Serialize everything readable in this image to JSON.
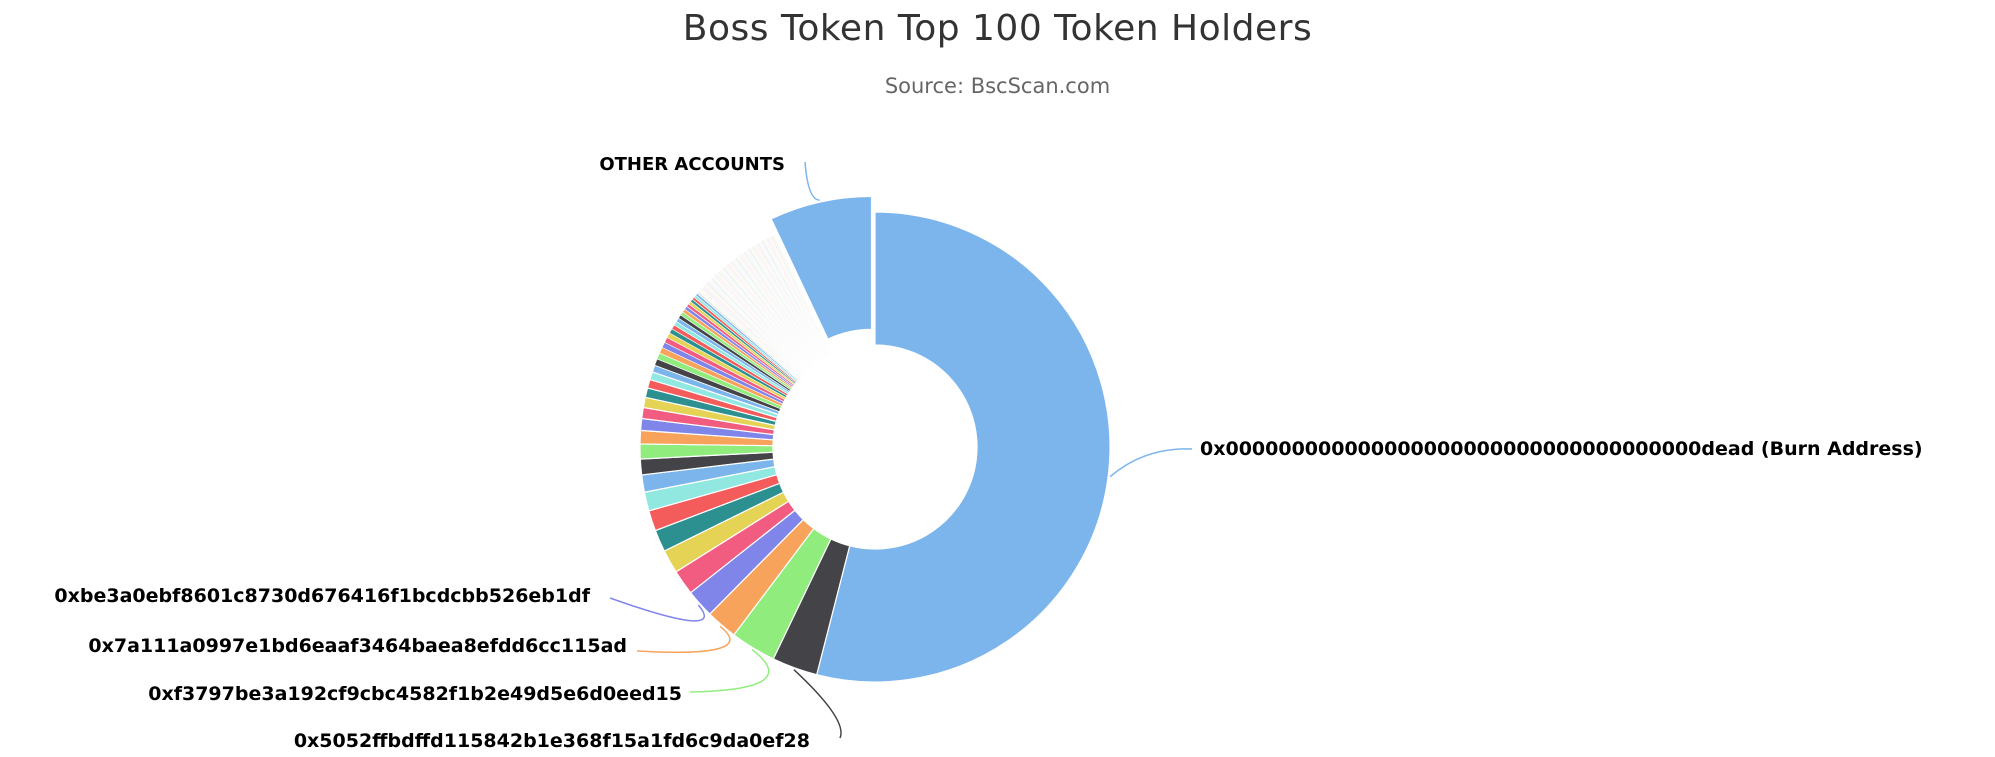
{
  "chart_data": {
    "type": "pie",
    "title": "Boss Token Top 100 Token Holders",
    "subtitle": "Source: BscScan.com",
    "variant": "donut",
    "slices": [
      {
        "label": "0x000000000000000000000000000000000000dead (Burn Address)",
        "value": 50.0,
        "color": "#7cb5ec",
        "labeled": true
      },
      {
        "label": "0x5052ffbdffd115842b1e368f15a1fd6c9da0ef28",
        "value": 2.9,
        "color": "#434348",
        "labeled": true
      },
      {
        "label": "0xf3797be3a192cf9cbc4582f1b2e49d5e6d0eed15",
        "value": 2.9,
        "color": "#90ed7d",
        "labeled": true
      },
      {
        "label": "0x7a111a0997e1bd6eaaf3464baea8efdd6cc115ad",
        "value": 2.0,
        "color": "#f7a35c",
        "labeled": true
      },
      {
        "label": "0xbe3a0ebf8601c8730d676416f1bcdcbb526eb1df",
        "value": 1.8,
        "color": "#8085e9",
        "labeled": true
      },
      {
        "value": 1.6,
        "color": "#f15c80"
      },
      {
        "value": 1.5,
        "color": "#e4d354"
      },
      {
        "value": 1.4,
        "color": "#2b908f"
      },
      {
        "value": 1.3,
        "color": "#f45b5b"
      },
      {
        "value": 1.2,
        "color": "#91e8e1"
      },
      {
        "value": 1.1,
        "color": "#7cb5ec"
      },
      {
        "value": 1.0,
        "color": "#434348"
      },
      {
        "value": 0.95,
        "color": "#90ed7d"
      },
      {
        "value": 0.85,
        "color": "#f7a35c"
      },
      {
        "value": 0.75,
        "color": "#8085e9"
      },
      {
        "value": 0.7,
        "color": "#f15c80"
      },
      {
        "value": 0.65,
        "color": "#e4d354"
      },
      {
        "value": 0.6,
        "color": "#2b908f"
      },
      {
        "value": 0.55,
        "color": "#f45b5b"
      },
      {
        "value": 0.5,
        "color": "#91e8e1"
      },
      {
        "value": 0.45,
        "color": "#7cb5ec"
      },
      {
        "value": 0.42,
        "color": "#434348"
      },
      {
        "value": 0.4,
        "color": "#90ed7d"
      },
      {
        "value": 0.38,
        "color": "#f7a35c"
      },
      {
        "value": 0.36,
        "color": "#8085e9"
      },
      {
        "value": 0.34,
        "color": "#f15c80"
      },
      {
        "value": 0.32,
        "color": "#e4d354"
      },
      {
        "value": 0.3,
        "color": "#2b908f"
      },
      {
        "value": 0.28,
        "color": "#f45b5b"
      },
      {
        "value": 0.26,
        "color": "#91e8e1"
      },
      {
        "value": 0.25,
        "color": "#7cb5ec"
      },
      {
        "value": 0.24,
        "color": "#434348"
      },
      {
        "value": 0.23,
        "color": "#90ed7d"
      },
      {
        "value": 0.22,
        "color": "#f7a35c"
      },
      {
        "value": 0.21,
        "color": "#8085e9"
      },
      {
        "value": 0.2,
        "color": "#f15c80"
      },
      {
        "value": 0.19,
        "color": "#e4d354"
      },
      {
        "value": 0.18,
        "color": "#2b908f"
      },
      {
        "value": 0.17,
        "color": "#f45b5b"
      },
      {
        "value": 0.16,
        "color": "#91e8e1"
      },
      {
        "value": 0.15,
        "color": "#7cb5ec"
      },
      {
        "value": 0.15,
        "color": "#434348"
      },
      {
        "value": 0.14,
        "color": "#90ed7d"
      },
      {
        "value": 0.14,
        "color": "#f7a35c"
      },
      {
        "value": 0.13,
        "color": "#8085e9"
      },
      {
        "value": 0.13,
        "color": "#f15c80"
      },
      {
        "value": 0.12,
        "color": "#e4d354"
      },
      {
        "value": 0.12,
        "color": "#2b908f"
      },
      {
        "value": 0.11,
        "color": "#f45b5b"
      },
      {
        "value": 0.11,
        "color": "#91e8e1"
      },
      {
        "value": 0.1,
        "color": "#7cb5ec"
      },
      {
        "value": 0.1,
        "color": "#434348"
      },
      {
        "value": 0.1,
        "color": "#90ed7d"
      },
      {
        "value": 0.1,
        "color": "#f7a35c"
      },
      {
        "value": 0.1,
        "color": "#8085e9"
      },
      {
        "value": 0.1,
        "color": "#f15c80"
      },
      {
        "value": 0.1,
        "color": "#e4d354"
      },
      {
        "value": 0.1,
        "color": "#2b908f"
      },
      {
        "value": 0.1,
        "color": "#f45b5b"
      },
      {
        "value": 0.1,
        "color": "#91e8e1"
      },
      {
        "value": 0.1,
        "color": "#7cb5ec"
      },
      {
        "value": 0.1,
        "color": "#434348"
      },
      {
        "value": 0.1,
        "color": "#90ed7d"
      },
      {
        "value": 0.1,
        "color": "#f7a35c"
      },
      {
        "value": 0.1,
        "color": "#8085e9"
      },
      {
        "value": 0.1,
        "color": "#f15c80"
      },
      {
        "value": 0.1,
        "color": "#e4d354"
      },
      {
        "value": 0.1,
        "color": "#2b908f"
      },
      {
        "value": 0.1,
        "color": "#f45b5b"
      },
      {
        "value": 0.1,
        "color": "#91e8e1"
      },
      {
        "value": 0.1,
        "color": "#7cb5ec"
      },
      {
        "value": 0.1,
        "color": "#434348"
      },
      {
        "value": 0.1,
        "color": "#90ed7d"
      },
      {
        "value": 0.1,
        "color": "#f7a35c"
      },
      {
        "value": 0.1,
        "color": "#8085e9"
      },
      {
        "value": 0.1,
        "color": "#f15c80"
      },
      {
        "value": 0.1,
        "color": "#e4d354"
      },
      {
        "value": 0.1,
        "color": "#2b908f"
      },
      {
        "value": 0.1,
        "color": "#f45b5b"
      },
      {
        "value": 0.1,
        "color": "#91e8e1"
      },
      {
        "value": 0.1,
        "color": "#7cb5ec"
      },
      {
        "value": 0.1,
        "color": "#434348"
      },
      {
        "value": 0.1,
        "color": "#90ed7d"
      },
      {
        "value": 0.1,
        "color": "#f7a35c"
      },
      {
        "value": 0.1,
        "color": "#8085e9"
      },
      {
        "value": 0.1,
        "color": "#f15c80"
      },
      {
        "value": 0.1,
        "color": "#e4d354"
      },
      {
        "value": 0.1,
        "color": "#2b908f"
      },
      {
        "value": 0.1,
        "color": "#f45b5b"
      },
      {
        "value": 0.1,
        "color": "#91e8e1"
      },
      {
        "value": 0.1,
        "color": "#7cb5ec"
      },
      {
        "value": 0.1,
        "color": "#434348"
      },
      {
        "value": 0.1,
        "color": "#90ed7d"
      },
      {
        "value": 0.1,
        "color": "#f7a35c"
      },
      {
        "value": 0.1,
        "color": "#8085e9"
      },
      {
        "value": 0.1,
        "color": "#f15c80"
      },
      {
        "value": 0.1,
        "color": "#e4d354"
      },
      {
        "value": 0.1,
        "color": "#2b908f"
      },
      {
        "value": 0.1,
        "color": "#f45b5b"
      },
      {
        "value": 0.1,
        "color": "#91e8e1"
      },
      {
        "label": "OTHER ACCOUNTS",
        "value": 6.5,
        "color": "#7cb5ec",
        "labeled": true,
        "sliced": true
      }
    ]
  }
}
